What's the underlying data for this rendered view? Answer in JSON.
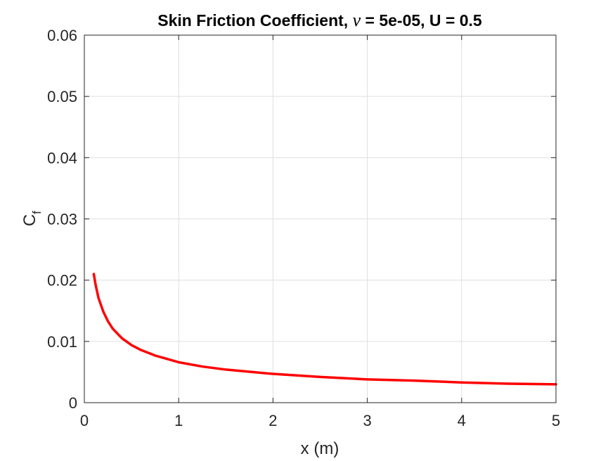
{
  "chart_data": {
    "type": "line",
    "title": "Skin Friction Coefficient, ν = 5e-05, U = 0.5",
    "title_parts": {
      "prefix": "Skin Friction Coefficient, ",
      "symbol": "ν",
      "suffix": " = 5e-05, U = 0.5"
    },
    "xlabel": "x (m)",
    "ylabel": {
      "base": "C",
      "subscript": "f"
    },
    "xlim": [
      0,
      5
    ],
    "ylim": [
      0,
      0.06
    ],
    "xticks": [
      0,
      1,
      2,
      3,
      4,
      5
    ],
    "xtick_labels": [
      "0",
      "1",
      "2",
      "3",
      "4",
      "5"
    ],
    "yticks": [
      0,
      0.01,
      0.02,
      0.03,
      0.04,
      0.05,
      0.06
    ],
    "ytick_labels": [
      "0",
      "0.01",
      "0.02",
      "0.03",
      "0.04",
      "0.05",
      "0.06"
    ],
    "grid": true,
    "series": [
      {
        "color": "#ff0000",
        "x": [
          0.1,
          0.12,
          0.15,
          0.2,
          0.25,
          0.3,
          0.4,
          0.5,
          0.6,
          0.75,
          1.0,
          1.25,
          1.5,
          2.0,
          2.5,
          3.0,
          3.5,
          4.0,
          4.5,
          5.0
        ],
        "y": [
          0.021,
          0.0192,
          0.0171,
          0.0149,
          0.0133,
          0.0121,
          0.0105,
          0.0094,
          0.0086,
          0.0077,
          0.0066,
          0.0059,
          0.0054,
          0.0047,
          0.0042,
          0.0038,
          0.0036,
          0.0033,
          0.0031,
          0.003
        ]
      }
    ]
  }
}
